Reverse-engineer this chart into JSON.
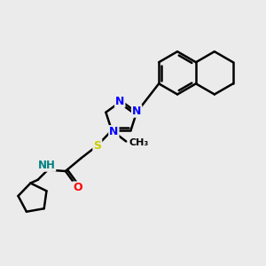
{
  "background_color": "#ebebeb",
  "atom_colors": {
    "N": "#0000ff",
    "O": "#ff0000",
    "S": "#cccc00",
    "C": "#000000",
    "H": "#008080"
  },
  "bond_color": "#000000",
  "bond_width": 1.8,
  "figsize": [
    3.0,
    3.0
  ],
  "dpi": 100
}
